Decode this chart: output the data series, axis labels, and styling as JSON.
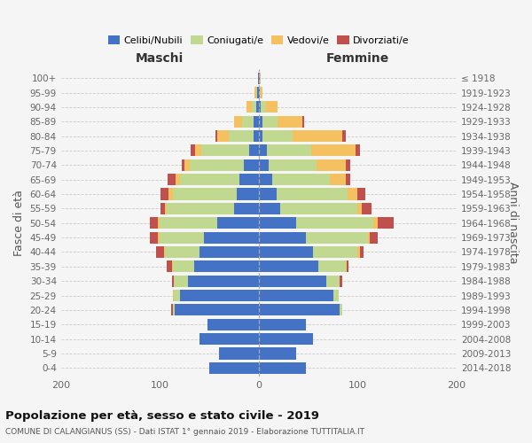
{
  "age_groups": [
    "100+",
    "95-99",
    "90-94",
    "85-89",
    "80-84",
    "75-79",
    "70-74",
    "65-69",
    "60-64",
    "55-59",
    "50-54",
    "45-49",
    "40-44",
    "35-39",
    "30-34",
    "25-29",
    "20-24",
    "15-19",
    "10-14",
    "5-9",
    "0-4"
  ],
  "birth_years": [
    "≤ 1918",
    "1919-1923",
    "1924-1928",
    "1929-1933",
    "1934-1938",
    "1939-1943",
    "1944-1948",
    "1949-1953",
    "1954-1958",
    "1959-1963",
    "1964-1968",
    "1969-1973",
    "1974-1978",
    "1979-1983",
    "1984-1988",
    "1989-1993",
    "1994-1998",
    "1999-2003",
    "2004-2008",
    "2009-2013",
    "2014-2018"
  ],
  "males": {
    "celibi": [
      1,
      2,
      3,
      5,
      5,
      10,
      15,
      20,
      22,
      25,
      42,
      55,
      60,
      65,
      72,
      80,
      85,
      52,
      60,
      40,
      50
    ],
    "coniugati": [
      0,
      1,
      4,
      12,
      25,
      48,
      55,
      60,
      65,
      68,
      58,
      45,
      35,
      22,
      14,
      6,
      2,
      0,
      0,
      0,
      0
    ],
    "vedovi": [
      0,
      1,
      5,
      8,
      12,
      6,
      5,
      4,
      4,
      2,
      2,
      2,
      1,
      1,
      0,
      1,
      0,
      0,
      0,
      0,
      0
    ],
    "divorziati": [
      0,
      0,
      0,
      0,
      2,
      5,
      3,
      8,
      8,
      4,
      8,
      8,
      8,
      5,
      2,
      0,
      2,
      0,
      0,
      0,
      0
    ]
  },
  "females": {
    "nubili": [
      1,
      1,
      2,
      4,
      4,
      8,
      10,
      14,
      18,
      22,
      38,
      48,
      55,
      60,
      68,
      75,
      82,
      48,
      55,
      38,
      48
    ],
    "coniugate": [
      0,
      1,
      5,
      15,
      30,
      45,
      48,
      58,
      72,
      78,
      78,
      62,
      45,
      28,
      14,
      6,
      2,
      0,
      0,
      0,
      0
    ],
    "vedove": [
      1,
      2,
      12,
      25,
      50,
      45,
      30,
      16,
      10,
      4,
      4,
      2,
      2,
      1,
      0,
      0,
      0,
      0,
      0,
      0,
      0
    ],
    "divorziate": [
      0,
      0,
      0,
      2,
      4,
      4,
      4,
      4,
      8,
      10,
      16,
      8,
      4,
      2,
      2,
      0,
      0,
      0,
      0,
      0,
      0
    ]
  },
  "colors": {
    "celibi": "#4472C4",
    "coniugati": "#C0D890",
    "vedovi": "#F5C060",
    "divorziati": "#C0504D"
  },
  "title": "Popolazione per età, sesso e stato civile - 2019",
  "subtitle": "COMUNE DI CALANGIANUS (SS) - Dati ISTAT 1° gennaio 2019 - Elaborazione TUTTITALIA.IT",
  "xlabel_left": "Maschi",
  "xlabel_right": "Femmine",
  "ylabel_left": "Fasce di età",
  "ylabel_right": "Anni di nascita",
  "xlim": 200,
  "legend_labels": [
    "Celibi/Nubili",
    "Coniugati/e",
    "Vedovi/e",
    "Divorziati/e"
  ],
  "bg_color": "#f5f5f5",
  "grid_color": "#cccccc"
}
